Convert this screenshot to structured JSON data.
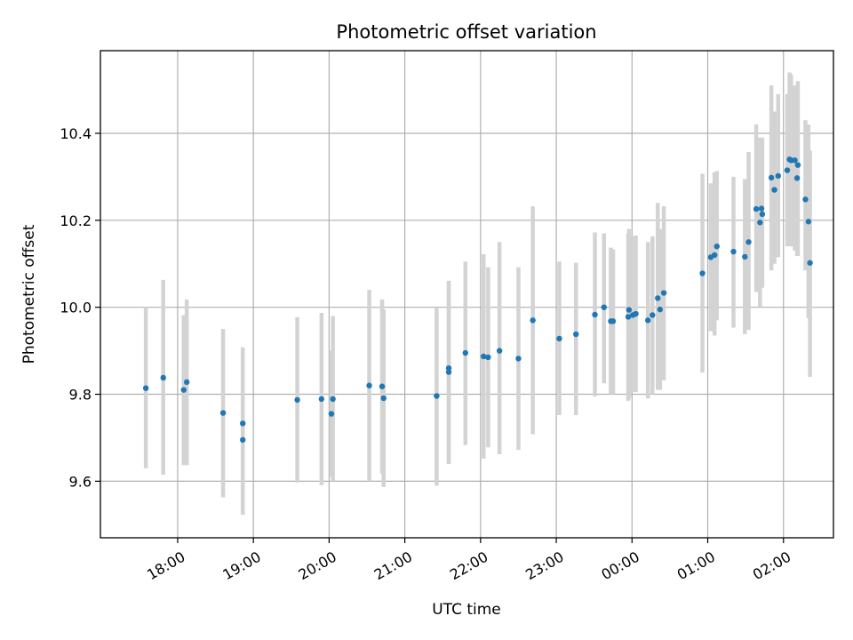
{
  "chart_data": {
    "type": "scatter",
    "title": "Photometric offset variation",
    "xlabel": "UTC time",
    "ylabel": "Photometric offset",
    "x_unit": "hours relative to 00:00 UTC (dates cross midnight)",
    "xlim": [
      -7.02,
      2.66
    ],
    "ylim": [
      9.47,
      10.59
    ],
    "x_ticks": [
      {
        "value": -6,
        "label": "18:00"
      },
      {
        "value": -5,
        "label": "19:00"
      },
      {
        "value": -4,
        "label": "20:00"
      },
      {
        "value": -3,
        "label": "21:00"
      },
      {
        "value": -2,
        "label": "22:00"
      },
      {
        "value": -1,
        "label": "23:00"
      },
      {
        "value": 0,
        "label": "00:00"
      },
      {
        "value": 1,
        "label": "01:00"
      },
      {
        "value": 2,
        "label": "02:00"
      }
    ],
    "y_ticks": [
      {
        "value": 9.6,
        "label": "9.6"
      },
      {
        "value": 9.8,
        "label": "9.8"
      },
      {
        "value": 10.0,
        "label": "10.0"
      },
      {
        "value": 10.2,
        "label": "10.2"
      },
      {
        "value": 10.4,
        "label": "10.4"
      }
    ],
    "grid": true,
    "colors": {
      "point": "#1f77b4",
      "errorbar": "#d3d3d3"
    },
    "points": [
      {
        "t": "17:35",
        "x": -6.42,
        "y": 9.814,
        "lo": 9.63,
        "hi": 10.0
      },
      {
        "t": "17:49",
        "x": -6.19,
        "y": 9.838,
        "lo": 9.615,
        "hi": 10.063
      },
      {
        "t": "18:05",
        "x": -5.92,
        "y": 9.81,
        "lo": 9.637,
        "hi": 9.982
      },
      {
        "t": "18:07",
        "x": -5.88,
        "y": 9.828,
        "lo": 9.637,
        "hi": 10.018
      },
      {
        "t": "18:36",
        "x": -5.4,
        "y": 9.757,
        "lo": 9.563,
        "hi": 9.95
      },
      {
        "t": "18:52",
        "x": -5.14,
        "y": 9.733,
        "lo": 9.558,
        "hi": 9.908
      },
      {
        "t": "18:52",
        "x": -5.14,
        "y": 9.695,
        "lo": 9.523,
        "hi": 9.867
      },
      {
        "t": "19:35",
        "x": -4.42,
        "y": 9.787,
        "lo": 9.597,
        "hi": 9.977
      },
      {
        "t": "19:54",
        "x": -4.1,
        "y": 9.789,
        "lo": 9.591,
        "hi": 9.987
      },
      {
        "t": "20:02",
        "x": -3.97,
        "y": 9.755,
        "lo": 9.61,
        "hi": 9.9
      },
      {
        "t": "20:03",
        "x": -3.95,
        "y": 9.789,
        "lo": 9.6,
        "hi": 9.98
      },
      {
        "t": "20:32",
        "x": -3.47,
        "y": 9.82,
        "lo": 9.6,
        "hi": 10.04
      },
      {
        "t": "20:42",
        "x": -3.3,
        "y": 9.818,
        "lo": 9.617,
        "hi": 10.018
      },
      {
        "t": "20:43",
        "x": -3.28,
        "y": 9.791,
        "lo": 9.587,
        "hi": 9.995
      },
      {
        "t": "21:25",
        "x": -2.58,
        "y": 9.796,
        "lo": 9.59,
        "hi": 9.998
      },
      {
        "t": "21:35",
        "x": -2.42,
        "y": 9.86,
        "lo": 9.64,
        "hi": 10.061
      },
      {
        "t": "21:35",
        "x": -2.42,
        "y": 9.851,
        "lo": 9.64,
        "hi": 10.061
      },
      {
        "t": "21:48",
        "x": -2.2,
        "y": 9.895,
        "lo": 9.683,
        "hi": 10.105
      },
      {
        "t": "22:02",
        "x": -1.96,
        "y": 9.887,
        "lo": 9.652,
        "hi": 10.122
      },
      {
        "t": "22:06",
        "x": -1.9,
        "y": 9.885,
        "lo": 9.678,
        "hi": 10.092
      },
      {
        "t": "22:15",
        "x": -1.75,
        "y": 9.9,
        "lo": 9.662,
        "hi": 10.15
      },
      {
        "t": "22:30",
        "x": -1.5,
        "y": 9.882,
        "lo": 9.672,
        "hi": 10.092
      },
      {
        "t": "22:41",
        "x": -1.31,
        "y": 9.97,
        "lo": 9.708,
        "hi": 10.232
      },
      {
        "t": "23:02",
        "x": -0.96,
        "y": 9.928,
        "lo": 9.752,
        "hi": 10.105
      },
      {
        "t": "23:16",
        "x": -0.74,
        "y": 9.938,
        "lo": 9.752,
        "hi": 10.102
      },
      {
        "t": "23:31",
        "x": -0.49,
        "y": 9.983,
        "lo": 9.795,
        "hi": 10.172
      },
      {
        "t": "23:38",
        "x": -0.37,
        "y": 10.0,
        "lo": 9.825,
        "hi": 10.17
      },
      {
        "t": "23:43",
        "x": -0.28,
        "y": 9.968,
        "lo": 9.8,
        "hi": 10.137
      },
      {
        "t": "23:45",
        "x": -0.25,
        "y": 9.968,
        "lo": 9.8,
        "hi": 10.133
      },
      {
        "t": "23:57",
        "x": -0.05,
        "y": 9.978,
        "lo": 9.785,
        "hi": 10.17
      },
      {
        "t": "23:58",
        "x": -0.04,
        "y": 9.994,
        "lo": 9.79,
        "hi": 10.18
      },
      {
        "t": "00:01",
        "x": 0.01,
        "y": 9.982,
        "lo": 9.805,
        "hi": 10.163
      },
      {
        "t": "00:03",
        "x": 0.05,
        "y": 9.985,
        "lo": 9.805,
        "hi": 10.165
      },
      {
        "t": "00:13",
        "x": 0.21,
        "y": 9.97,
        "lo": 9.79,
        "hi": 10.15
      },
      {
        "t": "00:16",
        "x": 0.27,
        "y": 9.982,
        "lo": 9.8,
        "hi": 10.163
      },
      {
        "t": "00:20",
        "x": 0.34,
        "y": 10.021,
        "lo": 9.81,
        "hi": 10.24
      },
      {
        "t": "00:22",
        "x": 0.37,
        "y": 9.995,
        "lo": 9.81,
        "hi": 10.18
      },
      {
        "t": "00:25",
        "x": 0.42,
        "y": 10.033,
        "lo": 9.832,
        "hi": 10.232
      },
      {
        "t": "00:56",
        "x": 0.93,
        "y": 10.078,
        "lo": 9.85,
        "hi": 10.307
      },
      {
        "t": "01:02",
        "x": 1.04,
        "y": 10.115,
        "lo": 9.945,
        "hi": 10.285
      },
      {
        "t": "01:05",
        "x": 1.09,
        "y": 10.12,
        "lo": 9.935,
        "hi": 10.31
      },
      {
        "t": "01:07",
        "x": 1.12,
        "y": 10.14,
        "lo": 9.97,
        "hi": 10.313
      },
      {
        "t": "01:20",
        "x": 1.34,
        "y": 10.128,
        "lo": 9.953,
        "hi": 10.3
      },
      {
        "t": "01:29",
        "x": 1.49,
        "y": 10.116,
        "lo": 9.938,
        "hi": 10.295
      },
      {
        "t": "01:32",
        "x": 1.54,
        "y": 10.15,
        "lo": 9.948,
        "hi": 10.357
      },
      {
        "t": "01:38",
        "x": 1.64,
        "y": 10.226,
        "lo": 10.035,
        "hi": 10.42
      },
      {
        "t": "01:41",
        "x": 1.69,
        "y": 10.195,
        "lo": 10.0,
        "hi": 10.39
      },
      {
        "t": "01:43",
        "x": 1.71,
        "y": 10.227,
        "lo": 10.045,
        "hi": 10.39
      },
      {
        "t": "01:43",
        "x": 1.72,
        "y": 10.214,
        "lo": 10.045,
        "hi": 10.39
      },
      {
        "t": "01:50",
        "x": 1.84,
        "y": 10.298,
        "lo": 10.085,
        "hi": 10.51
      },
      {
        "t": "01:53",
        "x": 1.88,
        "y": 10.27,
        "lo": 10.1,
        "hi": 10.45
      },
      {
        "t": "01:56",
        "x": 1.93,
        "y": 10.302,
        "lo": 10.115,
        "hi": 10.49
      },
      {
        "t": "02:03",
        "x": 2.05,
        "y": 10.315,
        "lo": 10.14,
        "hi": 10.49
      },
      {
        "t": "02:05",
        "x": 2.08,
        "y": 10.34,
        "lo": 10.14,
        "hi": 10.54
      },
      {
        "t": "02:06",
        "x": 2.1,
        "y": 10.338,
        "lo": 10.14,
        "hi": 10.535
      },
      {
        "t": "02:09",
        "x": 2.15,
        "y": 10.338,
        "lo": 10.13,
        "hi": 10.51
      },
      {
        "t": "02:11",
        "x": 2.18,
        "y": 10.297,
        "lo": 10.118,
        "hi": 10.48
      },
      {
        "t": "02:11",
        "x": 2.19,
        "y": 10.327,
        "lo": 10.118,
        "hi": 10.52
      },
      {
        "t": "02:17",
        "x": 2.29,
        "y": 10.248,
        "lo": 10.085,
        "hi": 10.43
      },
      {
        "t": "02:20",
        "x": 2.33,
        "y": 10.197,
        "lo": 9.975,
        "hi": 10.42
      },
      {
        "t": "02:21",
        "x": 2.35,
        "y": 10.102,
        "lo": 9.84,
        "hi": 10.36
      }
    ]
  }
}
